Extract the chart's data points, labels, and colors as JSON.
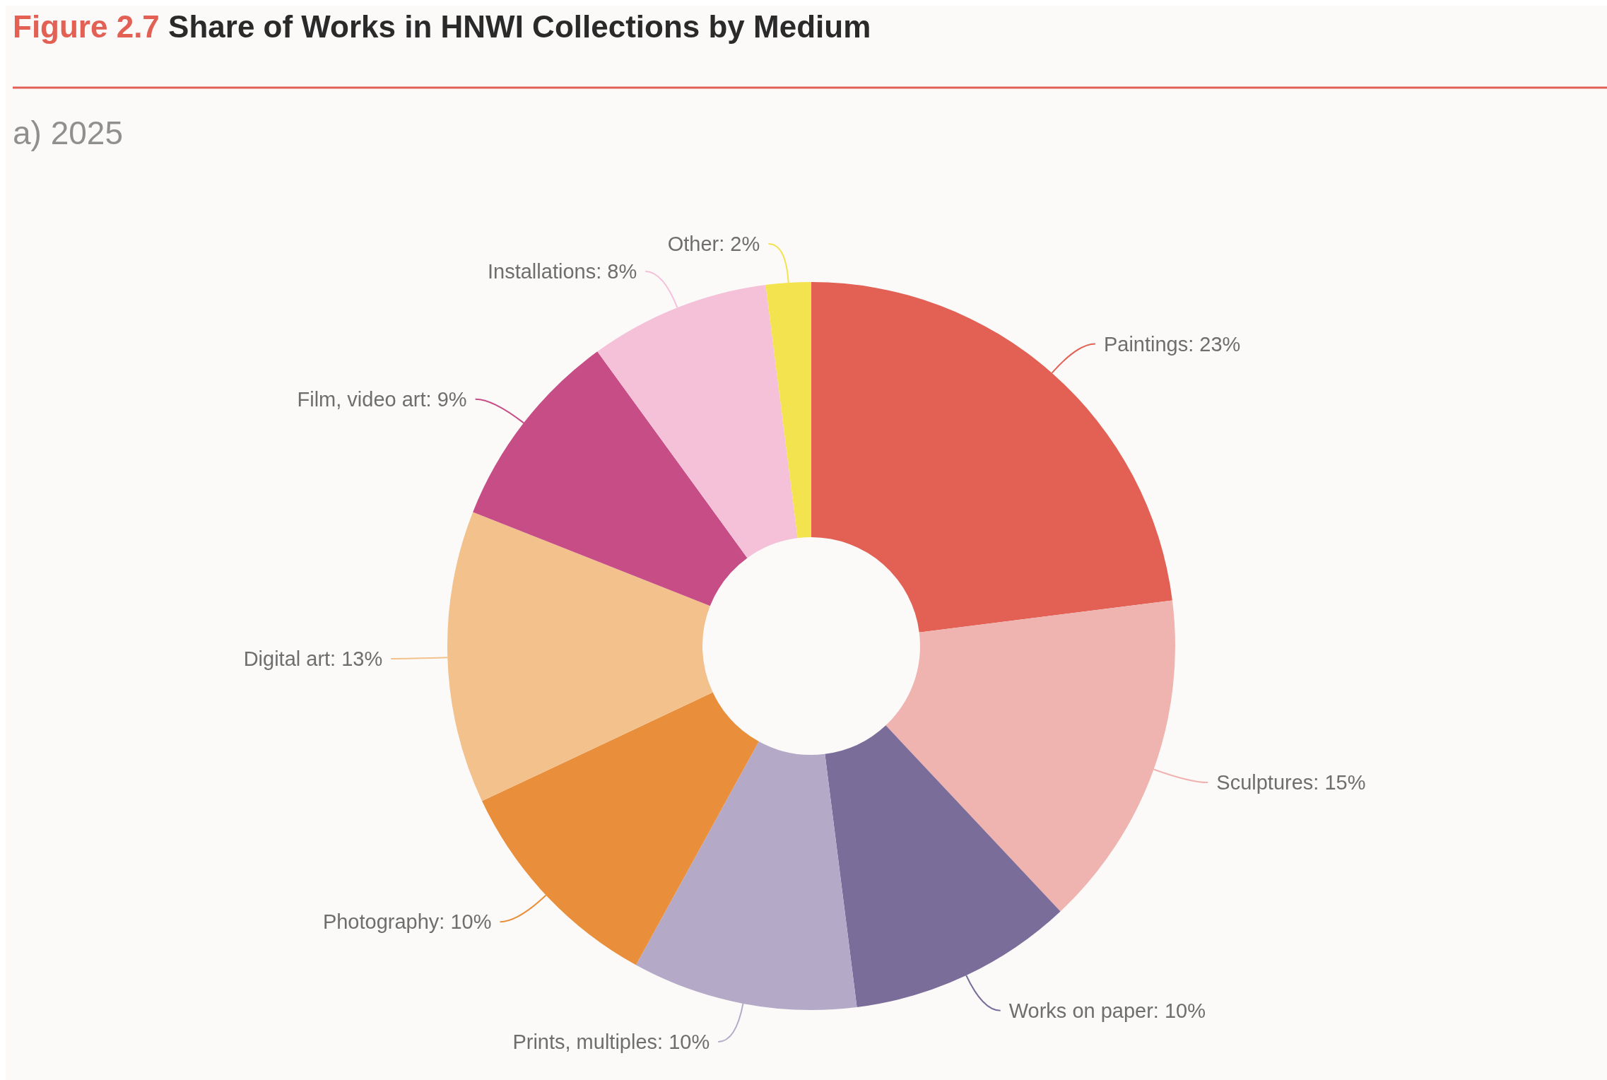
{
  "chart_data": {
    "type": "donut",
    "title": "Share of Works in HNWI Collections by Medium",
    "subtitle": "a) 2025",
    "annotations": [
      "Figure 2.7"
    ],
    "categories": [
      "Paintings",
      "Sculptures",
      "Works on paper",
      "Prints, multiples",
      "Photography",
      "Digital art",
      "Film, video art",
      "Installations",
      "Other"
    ],
    "values": [
      23,
      15,
      10,
      10,
      10,
      13,
      9,
      8,
      2
    ],
    "value_labels": [
      "23%",
      "15%",
      "10%",
      "10%",
      "10%",
      "13%",
      "9%",
      "8%",
      "2%"
    ],
    "colors": [
      "#e26054",
      "#efb3b0",
      "#7b6d9a",
      "#b4aac8",
      "#e98f3c",
      "#f2c18c",
      "#c64d86",
      "#f4c1d9",
      "#f3e34e"
    ]
  }
}
